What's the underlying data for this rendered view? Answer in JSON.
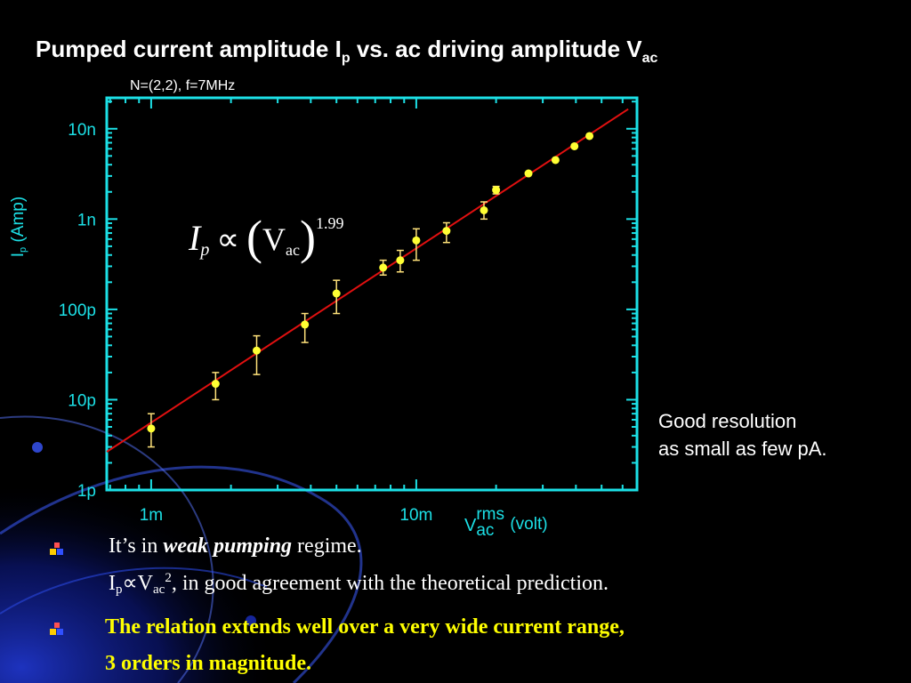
{
  "slide": {
    "title_main": "Pumped current amplitude I",
    "title_sub_p": "p",
    "title_mid": " vs. ac driving amplitude V",
    "title_sub_ac": "ac",
    "subtitle": "N=(2,2), f=7MHz"
  },
  "chart_data": {
    "type": "scatter",
    "subtitle": "N=(2,2), f=7MHz",
    "xlabel": {
      "base": "V",
      "sup": "rms",
      "sub": "ac",
      "unit": "(volt)"
    },
    "ylabel": {
      "base": "I",
      "sub": "p",
      "unit": "(Amp)"
    },
    "x_scale": "log",
    "y_scale": "log",
    "xlim": [
      0.00068,
      0.068
    ],
    "ylim": [
      1e-12,
      2.2e-08
    ],
    "x_ticks": [
      {
        "value": 0.001,
        "label": "1m"
      },
      {
        "value": 0.01,
        "label": "10m"
      }
    ],
    "y_ticks": [
      {
        "value": 1e-12,
        "label": "1p"
      },
      {
        "value": 1e-11,
        "label": "10p"
      },
      {
        "value": 1e-10,
        "label": "100p"
      },
      {
        "value": 1e-09,
        "label": "1n"
      },
      {
        "value": 1e-08,
        "label": "10n"
      }
    ],
    "grid": false,
    "series": [
      {
        "points": [
          {
            "x": 0.001,
            "y": 4.8e-12,
            "lo": 3e-12,
            "hi": 7e-12
          },
          {
            "x": 0.00175,
            "y": 1.5e-11,
            "lo": 1e-11,
            "hi": 2e-11
          },
          {
            "x": 0.0025,
            "y": 3.5e-11,
            "lo": 1.9e-11,
            "hi": 5.1e-11
          },
          {
            "x": 0.0038,
            "y": 6.8e-11,
            "lo": 4.3e-11,
            "hi": 9e-11
          },
          {
            "x": 0.005,
            "y": 1.5e-10,
            "lo": 9e-11,
            "hi": 2.1e-10
          },
          {
            "x": 0.0075,
            "y": 2.9e-10,
            "lo": 2.4e-10,
            "hi": 3.5e-10
          },
          {
            "x": 0.0087,
            "y": 3.5e-10,
            "lo": 2.6e-10,
            "hi": 4.5e-10
          },
          {
            "x": 0.01,
            "y": 5.8e-10,
            "lo": 3.5e-10,
            "hi": 7.8e-10
          },
          {
            "x": 0.013,
            "y": 7.4e-10,
            "lo": 5.5e-10,
            "hi": 9.1e-10
          },
          {
            "x": 0.018,
            "y": 1.25e-09,
            "lo": 1e-09,
            "hi": 1.55e-09
          },
          {
            "x": 0.02,
            "y": 2.1e-09,
            "lo": 1.9e-09,
            "hi": 2.3e-09
          },
          {
            "x": 0.0265,
            "y": 3.2e-09,
            "lo": 3.1e-09,
            "hi": 3.3e-09
          },
          {
            "x": 0.0335,
            "y": 4.5e-09,
            "lo": 4.4e-09,
            "hi": 4.6e-09
          },
          {
            "x": 0.0395,
            "y": 6.4e-09,
            "lo": 6.3e-09,
            "hi": 6.5e-09
          },
          {
            "x": 0.045,
            "y": 8.3e-09,
            "lo": 8.2e-09,
            "hi": 8.4e-09
          }
        ]
      }
    ],
    "fit": {
      "exponent": 1.99,
      "x": [
        0.00068,
        0.063
      ],
      "y": [
        2.65e-12,
        1.65e-08
      ]
    },
    "annotation": {
      "I": "I",
      "p": "p",
      "prop": "∝",
      "V": "V",
      "ac": "ac",
      "exponent": "1.99"
    },
    "colors": {
      "axes": "#1ce0e6",
      "fit_line": "#e01010",
      "points": "#ffff33",
      "error_bars": "#ffe27a"
    }
  },
  "note": {
    "line1": "Good resolution",
    "line2": "as small as few pA."
  },
  "bullets": [
    {
      "icon": "bullet-square-icon",
      "pre": "It’s in ",
      "em": "weak pumping",
      "post": " regime.",
      "sub_pre": "I",
      "sub_p": "p",
      "sub_prop": "∝V",
      "sub_ac": "ac",
      "sub_sq": "2",
      "sub_post": ", in good agreement with the theoretical prediction."
    },
    {
      "icon": "bullet-square-icon",
      "line1": "The relation extends well over a very wide current range,",
      "line2": "3 orders in magnitude."
    }
  ]
}
